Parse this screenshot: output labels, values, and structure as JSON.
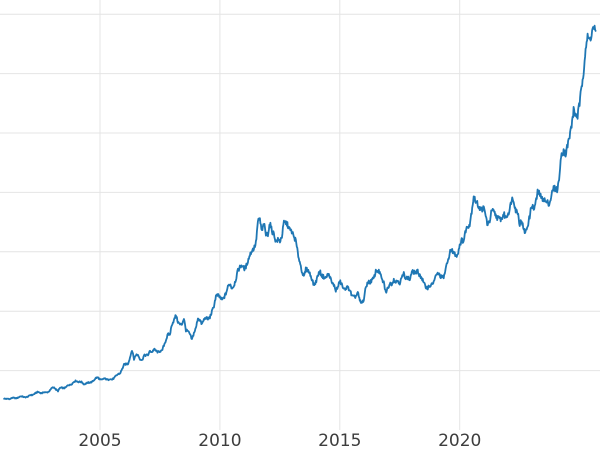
{
  "figure": {
    "background": "#ffffff"
  },
  "chart_data": {
    "type": "line",
    "title": "",
    "xlabel": "",
    "ylabel": "",
    "legend": false,
    "grid": true,
    "grid_color": "#e4e4e4",
    "tick_label_color": "#3d3d3d",
    "xlim": [
      2000.83,
      2025.85
    ],
    "ylim": [
      0,
      3620
    ],
    "xticks": [
      2005,
      2010,
      2015,
      2020
    ],
    "xtick_labels": [
      "2005",
      "2010",
      "2015",
      "2020"
    ],
    "yticks": [
      500,
      1000,
      1500,
      2000,
      2500,
      3000,
      3500
    ],
    "series": [
      {
        "name": "price-series",
        "color": "#1f77b4",
        "line_width": 1.8,
        "start_x": 2001.0,
        "x_step": 0.0833333,
        "values": [
          265,
          262,
          263,
          260,
          272,
          270,
          267,
          272,
          283,
          283,
          276,
          276,
          281,
          295,
          294,
          302,
          314,
          321,
          313,
          310,
          319,
          316,
          319,
          333,
          356,
          359,
          340,
          328,
          355,
          356,
          351,
          360,
          379,
          379,
          389,
          407,
          414,
          405,
          406,
          403,
          383,
          392,
          398,
          400,
          405,
          420,
          439,
          442,
          424,
          423,
          434,
          429,
          422,
          431,
          424,
          437,
          456,
          470,
          476,
          510,
          550,
          555,
          557,
          611,
          675,
          596,
          634,
          632,
          598,
          586,
          627,
          630,
          631,
          665,
          655,
          680,
          667,
          655,
          665,
          665,
          713,
          755,
          806,
          803,
          890,
          922,
          968,
          910,
          889,
          889,
          940,
          839,
          830,
          807,
          760,
          816,
          858,
          943,
          924,
          890,
          929,
          946,
          934,
          949,
          996,
          1043,
          1127,
          1135,
          1118,
          1095,
          1113,
          1149,
          1205,
          1233,
          1193,
          1216,
          1271,
          1342,
          1370,
          1391,
          1356,
          1373,
          1424,
          1474,
          1511,
          1529,
          1573,
          1756,
          1772,
          1666,
          1739,
          1641,
          1652,
          1743,
          1674,
          1650,
          1586,
          1600,
          1590,
          1630,
          1745,
          1747,
          1722,
          1685,
          1671,
          1628,
          1593,
          1487,
          1414,
          1343,
          1285,
          1352,
          1348,
          1316,
          1276,
          1221,
          1244,
          1301,
          1336,
          1299,
          1288,
          1279,
          1311,
          1296,
          1237,
          1222,
          1176,
          1201,
          1251,
          1227,
          1178,
          1198,
          1199,
          1181,
          1128,
          1118,
          1125,
          1159,
          1086,
          1068,
          1097,
          1200,
          1246,
          1242,
          1261,
          1276,
          1337,
          1340,
          1327,
          1266,
          1238,
          1157,
          1192,
          1234,
          1231,
          1266,
          1246,
          1260,
          1236,
          1283,
          1315,
          1280,
          1282,
          1264,
          1331,
          1330,
          1325,
          1334,
          1303,
          1282,
          1238,
          1202,
          1198,
          1215,
          1221,
          1250,
          1291,
          1320,
          1301,
          1286,
          1284,
          1359,
          1413,
          1498,
          1511,
          1495,
          1471,
          1479,
          1561,
          1597,
          1592,
          1683,
          1716,
          1732,
          1843,
          1969,
          1922,
          1900,
          1866,
          1858,
          1867,
          1808,
          1718,
          1762,
          1850,
          1835,
          1807,
          1784,
          1777,
          1777,
          1820,
          1787,
          1817,
          1856,
          1948,
          1937,
          1848,
          1837,
          1733,
          1766,
          1681,
          1665,
          1725,
          1797,
          1898,
          1855,
          1913,
          2000,
          1992,
          1942,
          1951,
          1919,
          1915,
          1907,
          1984,
          2033,
          2034,
          2023,
          2160,
          2330,
          2351,
          2326,
          2398,
          2470,
          2568,
          2690,
          2651,
          2643,
          2750,
          2880,
          3030,
          3220,
          3300,
          3280,
          3340,
          3390,
          3360
        ]
      }
    ]
  }
}
